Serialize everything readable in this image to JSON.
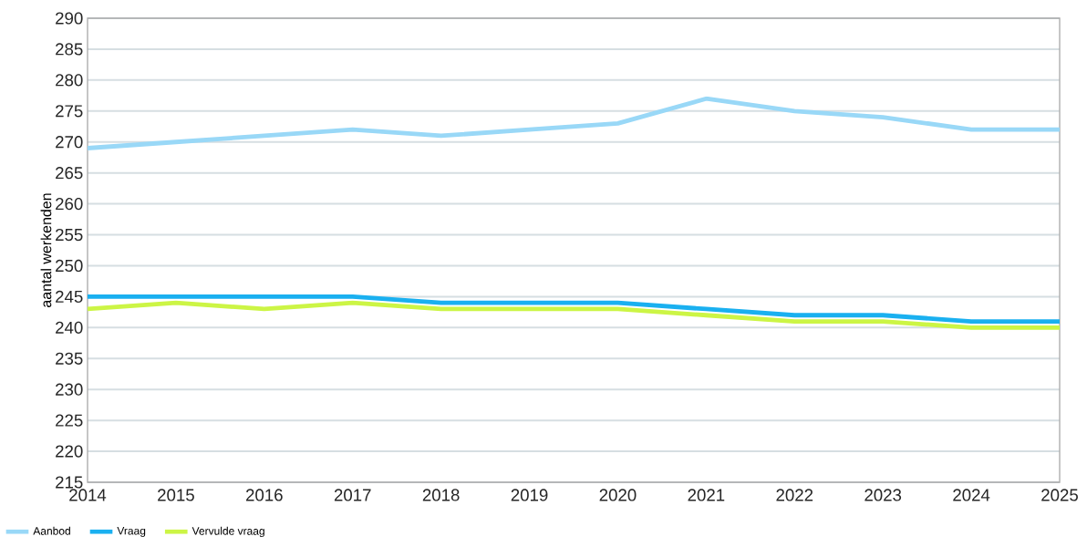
{
  "chart_data": {
    "type": "line",
    "ylabel": "aantal werkenden",
    "x": [
      2014,
      2015,
      2016,
      2017,
      2018,
      2019,
      2020,
      2021,
      2022,
      2023,
      2024,
      2025
    ],
    "series": [
      {
        "name": "Aanbod",
        "color": "#99d8f7",
        "values": [
          269,
          270,
          271,
          272,
          271,
          272,
          273,
          277,
          275,
          274,
          272,
          272
        ]
      },
      {
        "name": "Vraag",
        "color": "#1ab0f0",
        "values": [
          245,
          245,
          245,
          245,
          244,
          244,
          244,
          243,
          242,
          242,
          241,
          241
        ]
      },
      {
        "name": "Vervulde vraag",
        "color": "#ccf545",
        "values": [
          243,
          244,
          243,
          244,
          243,
          243,
          243,
          242,
          241,
          241,
          240,
          240
        ]
      }
    ],
    "xlim": [
      2014,
      2025
    ],
    "xticks": [
      2014,
      2015,
      2016,
      2017,
      2018,
      2019,
      2020,
      2021,
      2022,
      2023,
      2024,
      2025
    ],
    "ylim": [
      215,
      290
    ],
    "yticks": [
      215,
      220,
      225,
      230,
      235,
      240,
      245,
      250,
      255,
      260,
      265,
      270,
      275,
      280,
      285,
      290
    ],
    "grid": "y",
    "legend": "bottom",
    "marker": "none",
    "line_style": "solid"
  }
}
